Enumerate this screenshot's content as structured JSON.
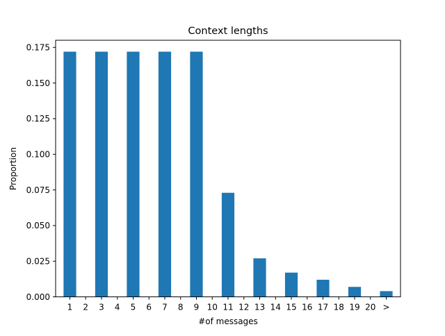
{
  "chart_data": {
    "type": "bar",
    "title": "Context lengths",
    "xlabel": "#of messages",
    "ylabel": "Proportion",
    "categories": [
      "1",
      "2",
      "3",
      "4",
      "5",
      "6",
      "7",
      "8",
      "9",
      "10",
      "11",
      "12",
      "13",
      "14",
      "15",
      "16",
      "17",
      "18",
      "19",
      "20",
      ">"
    ],
    "values": [
      0.172,
      0,
      0.172,
      0,
      0.172,
      0,
      0.172,
      0,
      0.172,
      0,
      0.073,
      0,
      0.027,
      0,
      0.017,
      0,
      0.012,
      0,
      0.007,
      0,
      0.004
    ],
    "ylim": [
      0,
      0.18
    ],
    "yticks": [
      "0.000",
      "0.025",
      "0.050",
      "0.075",
      "0.100",
      "0.125",
      "0.150",
      "0.175"
    ],
    "bar_color": "#1f77b4",
    "grid": false,
    "legend": false
  }
}
